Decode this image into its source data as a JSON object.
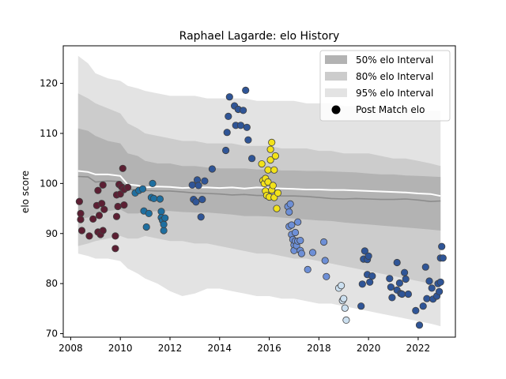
{
  "chart_data": {
    "type": "scatter",
    "title": "Raphael Lagarde: elo History",
    "xlabel": "",
    "ylabel": "elo score",
    "xlim": [
      2007.7,
      2023.5
    ],
    "ylim": [
      69.3,
      127.5
    ],
    "xticks": [
      2008,
      2010,
      2012,
      2014,
      2016,
      2018,
      2020,
      2022
    ],
    "yticks": [
      70,
      80,
      90,
      100,
      110,
      120
    ],
    "legend_position": "top-right",
    "legend": {
      "band50": "50% elo Interval",
      "band80": "80% elo Interval",
      "band95": "95% elo Interval",
      "points": "Post Match elo"
    },
    "colors": {
      "band50": "#b3b3b3",
      "band80": "#cccccc",
      "band95": "#e3e3e3",
      "median_line": "#8c8c8c",
      "mean_line": "#ffffff",
      "point_edge": "#404040"
    },
    "series_lines": {
      "x": [
        2008.3,
        2008.7,
        2009.0,
        2009.5,
        2010.0,
        2010.3,
        2010.7,
        2011.0,
        2011.5,
        2012.0,
        2012.5,
        2013.0,
        2013.5,
        2014.0,
        2014.5,
        2015.0,
        2015.5,
        2016.0,
        2016.5,
        2017.0,
        2017.5,
        2018.0,
        2018.5,
        2019.0,
        2019.5,
        2020.0,
        2020.5,
        2021.0,
        2021.5,
        2022.0,
        2022.5,
        2022.9
      ],
      "mean": [
        102.5,
        102.3,
        101.8,
        101.8,
        101.5,
        99.8,
        99.6,
        99.2,
        99.4,
        99.3,
        99.1,
        99.2,
        99.2,
        99.1,
        99.2,
        99.0,
        99.2,
        99.1,
        99.0,
        98.9,
        98.8,
        98.8,
        98.7,
        98.7,
        98.6,
        98.5,
        98.4,
        98.3,
        98.2,
        98.0,
        97.9,
        97.5
      ],
      "median": [
        101.4,
        101.3,
        100.3,
        100.5,
        100.4,
        98.9,
        98.6,
        98.6,
        98.5,
        98.5,
        98.3,
        98.1,
        98.0,
        97.9,
        97.7,
        97.8,
        97.6,
        97.6,
        97.5,
        97.5,
        97.4,
        97.2,
        97.0,
        96.9,
        97.0,
        96.9,
        96.8,
        96.8,
        96.9,
        96.7,
        96.4,
        96.5
      ],
      "band50_low": [
        93.0,
        93.2,
        94.0,
        94.5,
        94.8,
        94.0,
        94.0,
        94.3,
        94.5,
        94.5,
        94.3,
        94.2,
        94.2,
        94.0,
        93.8,
        93.5,
        93.5,
        93.4,
        93.2,
        93.0,
        92.8,
        92.6,
        92.5,
        92.2,
        92.0,
        91.8,
        91.6,
        91.4,
        91.2,
        91.0,
        90.8,
        90.6
      ],
      "band50_high": [
        111.0,
        110.5,
        109.5,
        108.5,
        108.0,
        106.0,
        105.5,
        104.5,
        104.0,
        104.0,
        103.5,
        103.5,
        103.2,
        103.0,
        103.0,
        103.0,
        102.8,
        102.8,
        102.6,
        102.6,
        102.5,
        102.5,
        102.4,
        102.3,
        102.2,
        102.0,
        101.8,
        101.8,
        101.6,
        101.5,
        101.4,
        101.3
      ],
      "band80_low": [
        87.5,
        88.0,
        88.5,
        89.0,
        89.5,
        89.0,
        89.0,
        89.5,
        89.0,
        88.5,
        88.5,
        88.0,
        88.0,
        87.5,
        87.0,
        86.5,
        86.0,
        86.0,
        85.5,
        85.0,
        85.0,
        84.5,
        84.0,
        83.5,
        83.0,
        82.5,
        82.0,
        81.5,
        81.0,
        80.5,
        80.0,
        79.5
      ],
      "band80_high": [
        118.0,
        117.0,
        116.0,
        115.0,
        114.0,
        112.0,
        111.0,
        110.0,
        109.5,
        109.0,
        108.5,
        108.5,
        108.0,
        108.0,
        108.0,
        107.5,
        107.5,
        107.5,
        107.0,
        107.0,
        107.0,
        106.5,
        106.5,
        106.0,
        106.0,
        106.0,
        105.5,
        105.0,
        105.0,
        104.5,
        104.0,
        103.5
      ],
      "band95_low": [
        86.0,
        85.5,
        85.0,
        85.0,
        84.5,
        83.0,
        82.0,
        81.0,
        80.0,
        78.5,
        77.5,
        78.0,
        79.0,
        79.0,
        78.5,
        78.0,
        77.5,
        77.5,
        77.0,
        77.0,
        76.5,
        76.0,
        76.0,
        75.5,
        75.0,
        74.5,
        74.0,
        73.5,
        73.0,
        72.5,
        72.0,
        71.5
      ],
      "band95_high": [
        125.5,
        124.0,
        122.0,
        121.0,
        120.5,
        119.5,
        119.0,
        118.5,
        118.0,
        117.5,
        117.5,
        117.5,
        117.0,
        117.0,
        117.0,
        117.0,
        116.5,
        116.5,
        116.5,
        116.5,
        116.0,
        116.0,
        116.0,
        115.5,
        115.5,
        115.5,
        115.0,
        115.0,
        115.0,
        114.5,
        114.5,
        114.5
      ]
    },
    "point_groups": [
      {
        "color": "#5c1f33",
        "points": [
          [
            2008.35,
            96.4
          ],
          [
            2008.4,
            94.0
          ],
          [
            2008.4,
            92.8
          ],
          [
            2008.45,
            90.6
          ],
          [
            2008.75,
            89.5
          ],
          [
            2008.9,
            92.9
          ],
          [
            2009.05,
            95.6
          ],
          [
            2009.1,
            90.3
          ],
          [
            2009.1,
            98.6
          ],
          [
            2009.15,
            93.6
          ],
          [
            2009.2,
            89.8
          ],
          [
            2009.25,
            96.0
          ],
          [
            2009.3,
            99.7
          ],
          [
            2009.3,
            90.6
          ],
          [
            2009.35,
            94.8
          ],
          [
            2009.8,
            89.5
          ],
          [
            2009.8,
            87.0
          ],
          [
            2009.85,
            93.4
          ],
          [
            2009.85,
            97.7
          ],
          [
            2009.9,
            95.4
          ],
          [
            2009.95,
            99.8
          ],
          [
            2010.0,
            97.9
          ],
          [
            2010.05,
            99.3
          ],
          [
            2010.1,
            103.0
          ],
          [
            2010.15,
            98.8
          ],
          [
            2010.15,
            95.7
          ],
          [
            2010.3,
            99.2
          ]
        ]
      },
      {
        "color": "#1e6fa0",
        "points": [
          [
            2010.6,
            98.1
          ],
          [
            2010.75,
            98.6
          ],
          [
            2010.9,
            98.9
          ],
          [
            2010.95,
            94.5
          ],
          [
            2011.05,
            91.3
          ],
          [
            2011.15,
            94.0
          ],
          [
            2011.25,
            97.2
          ],
          [
            2011.3,
            100.0
          ],
          [
            2011.35,
            97.0
          ],
          [
            2011.6,
            96.9
          ],
          [
            2011.65,
            94.4
          ],
          [
            2011.65,
            93.2
          ],
          [
            2011.7,
            92.6
          ],
          [
            2011.75,
            90.6
          ],
          [
            2011.75,
            91.8
          ],
          [
            2011.8,
            93.1
          ]
        ]
      },
      {
        "color": "#2f5597",
        "points": [
          [
            2012.9,
            99.7
          ],
          [
            2012.95,
            96.8
          ],
          [
            2013.05,
            96.3
          ],
          [
            2013.1,
            100.7
          ],
          [
            2013.15,
            99.6
          ],
          [
            2013.25,
            93.3
          ],
          [
            2013.3,
            96.8
          ],
          [
            2013.4,
            100.5
          ],
          [
            2013.7,
            102.9
          ],
          [
            2014.25,
            106.6
          ],
          [
            2014.35,
            113.4
          ],
          [
            2014.4,
            117.3
          ],
          [
            2014.3,
            110.2
          ],
          [
            2014.6,
            115.5
          ],
          [
            2014.65,
            111.6
          ],
          [
            2014.75,
            114.8
          ],
          [
            2014.85,
            111.6
          ],
          [
            2014.95,
            114.6
          ],
          [
            2015.05,
            118.6
          ],
          [
            2015.1,
            111.2
          ],
          [
            2015.15,
            108.7
          ],
          [
            2015.3,
            105.0
          ]
        ]
      },
      {
        "color": "#f2e21a",
        "points": [
          [
            2015.7,
            103.9
          ],
          [
            2015.75,
            100.6
          ],
          [
            2015.8,
            100.0
          ],
          [
            2015.85,
            101.0
          ],
          [
            2015.85,
            98.5
          ],
          [
            2015.9,
            97.6
          ],
          [
            2015.95,
            100.3
          ],
          [
            2015.95,
            102.7
          ],
          [
            2016.0,
            97.3
          ],
          [
            2016.05,
            104.7
          ],
          [
            2016.05,
            106.8
          ],
          [
            2016.1,
            108.2
          ],
          [
            2016.1,
            98.7
          ],
          [
            2016.15,
            99.6
          ],
          [
            2016.2,
            102.7
          ],
          [
            2016.2,
            97.2
          ],
          [
            2016.25,
            105.5
          ],
          [
            2016.3,
            95.0
          ],
          [
            2016.35,
            98.1
          ]
        ]
      },
      {
        "color": "#6d8fd6",
        "points": [
          [
            2016.75,
            95.4
          ],
          [
            2016.8,
            94.3
          ],
          [
            2016.8,
            91.4
          ],
          [
            2016.85,
            95.9
          ],
          [
            2016.9,
            89.8
          ],
          [
            2016.9,
            91.7
          ],
          [
            2016.95,
            88.8
          ],
          [
            2017.0,
            87.7
          ],
          [
            2017.0,
            86.6
          ],
          [
            2017.05,
            90.2
          ],
          [
            2017.05,
            88.5
          ],
          [
            2017.1,
            87.6
          ],
          [
            2017.15,
            92.3
          ],
          [
            2017.15,
            88.5
          ],
          [
            2017.25,
            86.6
          ],
          [
            2017.25,
            88.6
          ],
          [
            2017.3,
            86.0
          ],
          [
            2017.55,
            82.8
          ],
          [
            2017.75,
            86.2
          ],
          [
            2018.2,
            88.3
          ],
          [
            2018.25,
            84.6
          ],
          [
            2018.3,
            81.4
          ]
        ]
      },
      {
        "color": "#cce0f0",
        "points": [
          [
            2018.8,
            79.1
          ],
          [
            2018.9,
            79.6
          ],
          [
            2018.95,
            76.6
          ],
          [
            2019.0,
            77.0
          ],
          [
            2019.05,
            75.1
          ],
          [
            2019.1,
            72.7
          ]
        ]
      },
      {
        "color": "#2f5597",
        "points": [
          [
            2019.7,
            75.5
          ],
          [
            2019.75,
            79.9
          ],
          [
            2019.8,
            84.9
          ],
          [
            2019.85,
            86.5
          ],
          [
            2019.95,
            84.8
          ],
          [
            2019.95,
            81.8
          ],
          [
            2020.0,
            85.5
          ],
          [
            2020.05,
            80.3
          ],
          [
            2020.15,
            81.5
          ],
          [
            2020.85,
            81.0
          ],
          [
            2020.9,
            79.3
          ],
          [
            2020.95,
            77.2
          ],
          [
            2021.15,
            84.2
          ],
          [
            2021.15,
            78.7
          ],
          [
            2021.25,
            80.1
          ],
          [
            2021.3,
            78.0
          ],
          [
            2021.35,
            77.9
          ],
          [
            2021.45,
            82.2
          ],
          [
            2021.5,
            80.9
          ],
          [
            2021.6,
            77.9
          ],
          [
            2021.9,
            74.6
          ],
          [
            2022.05,
            71.7
          ],
          [
            2022.2,
            75.5
          ],
          [
            2022.3,
            83.3
          ],
          [
            2022.35,
            77.0
          ],
          [
            2022.45,
            80.5
          ],
          [
            2022.55,
            79.1
          ],
          [
            2022.6,
            76.9
          ],
          [
            2022.75,
            77.5
          ],
          [
            2022.8,
            80.0
          ],
          [
            2022.85,
            78.4
          ],
          [
            2022.9,
            80.3
          ],
          [
            2022.9,
            85.1
          ],
          [
            2022.95,
            87.4
          ],
          [
            2023.0,
            85.1
          ]
        ]
      }
    ]
  }
}
